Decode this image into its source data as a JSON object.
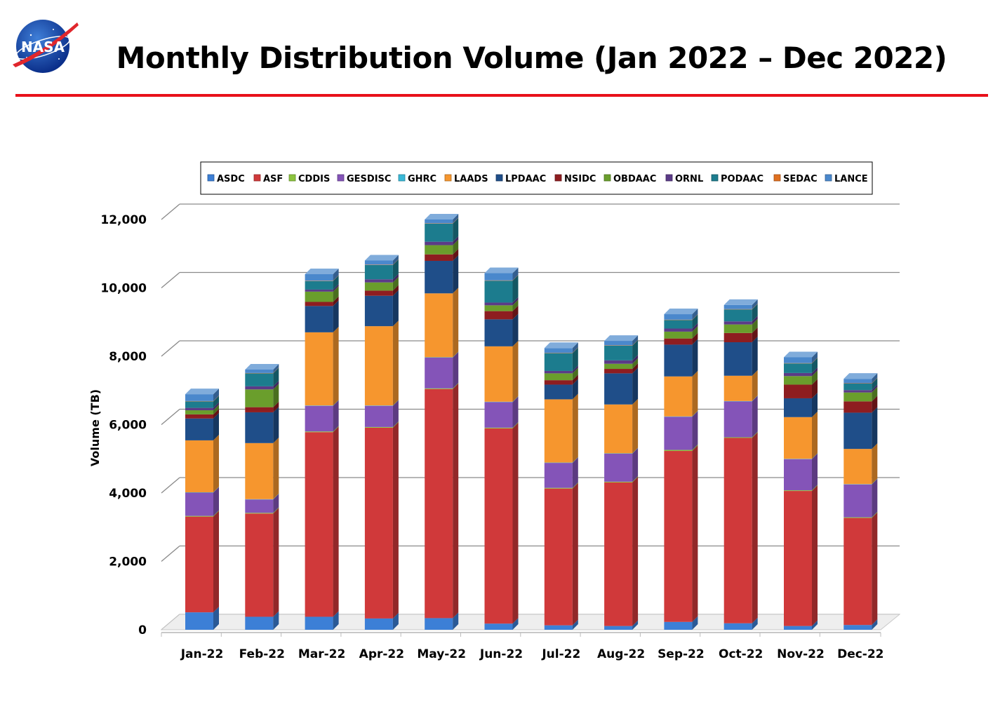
{
  "header": {
    "title": "Monthly Distribution Volume (Jan 2022 – Dec 2022)",
    "logo_text": "NASA"
  },
  "chart_data": {
    "type": "bar",
    "stacked": true,
    "title": "Monthly Distribution Volume (Jan 2022 – Dec 2022)",
    "xlabel": "",
    "ylabel": "Volume (TB)",
    "ylim": [
      0,
      12000
    ],
    "yticks": [
      0,
      2000,
      4000,
      6000,
      8000,
      10000,
      12000
    ],
    "ytick_labels": [
      "0",
      "2,000",
      "4,000",
      "6,000",
      "8,000",
      "10,000",
      "12,000"
    ],
    "grid": true,
    "legend_position": "top",
    "categories": [
      "Jan-22",
      "Feb-22",
      "Mar-22",
      "Apr-22",
      "May-22",
      "Jun-22",
      "Jul-22",
      "Aug-22",
      "Sep-22",
      "Oct-22",
      "Nov-22",
      "Dec-22"
    ],
    "series": [
      {
        "name": "ASDC",
        "color": "#3c7fd6",
        "values": [
          510,
          380,
          380,
          330,
          340,
          180,
          130,
          110,
          230,
          190,
          110,
          140
        ]
      },
      {
        "name": "ASF",
        "color": "#d0393a",
        "values": [
          2800,
          3020,
          5400,
          5580,
          6700,
          5710,
          4000,
          4200,
          5000,
          5420,
          3950,
          3130
        ]
      },
      {
        "name": "CDDIS",
        "color": "#8cc43e",
        "values": [
          20,
          20,
          20,
          20,
          20,
          20,
          20,
          20,
          30,
          20,
          20,
          20
        ]
      },
      {
        "name": "GESDISC",
        "color": "#8454b8",
        "values": [
          680,
          390,
          750,
          620,
          900,
          750,
          730,
          820,
          970,
          1050,
          910,
          960
        ]
      },
      {
        "name": "GHRC",
        "color": "#3ab9d8",
        "values": [
          10,
          10,
          10,
          10,
          10,
          10,
          10,
          10,
          10,
          10,
          10,
          10
        ]
      },
      {
        "name": "LAADS",
        "color": "#f6962e",
        "values": [
          1520,
          1640,
          2140,
          2320,
          1870,
          1620,
          1850,
          1430,
          1170,
          740,
          1220,
          1030
        ]
      },
      {
        "name": "LPDAAC",
        "color": "#1f4e89",
        "values": [
          640,
          900,
          770,
          890,
          950,
          790,
          430,
          910,
          930,
          980,
          550,
          1060
        ]
      },
      {
        "name": "NSIDC",
        "color": "#8e1d20",
        "values": [
          120,
          150,
          120,
          150,
          190,
          240,
          130,
          130,
          180,
          270,
          400,
          330
        ]
      },
      {
        "name": "OBDAAC",
        "color": "#6a9e2c",
        "values": [
          120,
          520,
          300,
          240,
          270,
          170,
          200,
          150,
          200,
          250,
          250,
          260
        ]
      },
      {
        "name": "ORNL",
        "color": "#5b3b87",
        "values": [
          70,
          90,
          60,
          90,
          100,
          80,
          70,
          100,
          90,
          90,
          90,
          70
        ]
      },
      {
        "name": "PODAAC",
        "color": "#1c7c8e",
        "values": [
          190,
          380,
          250,
          420,
          530,
          640,
          520,
          430,
          250,
          350,
          280,
          190
        ]
      },
      {
        "name": "SEDAC",
        "color": "#e0701f",
        "values": [
          10,
          10,
          10,
          10,
          10,
          10,
          10,
          10,
          10,
          10,
          10,
          10
        ]
      },
      {
        "name": "LANCE",
        "color": "#4a88cc",
        "values": [
          200,
          100,
          190,
          120,
          110,
          210,
          140,
          130,
          160,
          120,
          170,
          130
        ]
      }
    ]
  }
}
